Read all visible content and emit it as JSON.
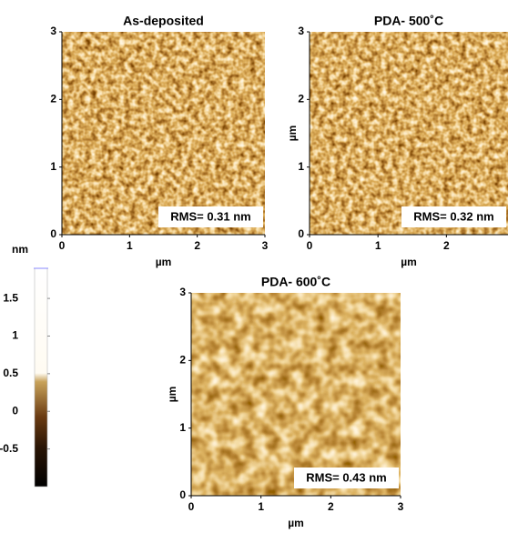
{
  "chart_data": [
    {
      "type": "image",
      "title": "As-deposited",
      "xlabel": "µm",
      "annotation": "RMS= 0.31 nm",
      "xlim": [
        0,
        3
      ],
      "ylim": [
        0,
        3
      ],
      "xticks": [
        0,
        1,
        2,
        3
      ],
      "yticks": [
        0,
        1,
        2,
        3
      ]
    },
    {
      "type": "image",
      "title": "PDA- 500˚C",
      "xlabel": "µm",
      "ylabel": "µm",
      "annotation": "RMS= 0.32 nm",
      "xlim": [
        0,
        2.9
      ],
      "ylim": [
        0,
        3
      ],
      "xticks": [
        0,
        1,
        2
      ],
      "yticks": [
        0,
        1,
        2,
        3
      ]
    },
    {
      "type": "image",
      "title": "PDA- 600˚C",
      "xlabel": "µm",
      "ylabel": "µm",
      "annotation": "RMS= 0.43 nm",
      "xlim": [
        0,
        3
      ],
      "ylim": [
        0,
        3
      ],
      "xticks": [
        0,
        1,
        2,
        3
      ],
      "yticks": [
        0,
        1,
        2,
        3
      ]
    }
  ],
  "colorbar": {
    "label": "nm",
    "lim": [
      -1,
      1.9
    ],
    "ticks": [
      1.5,
      1,
      0.5,
      0,
      -0.5
    ]
  }
}
